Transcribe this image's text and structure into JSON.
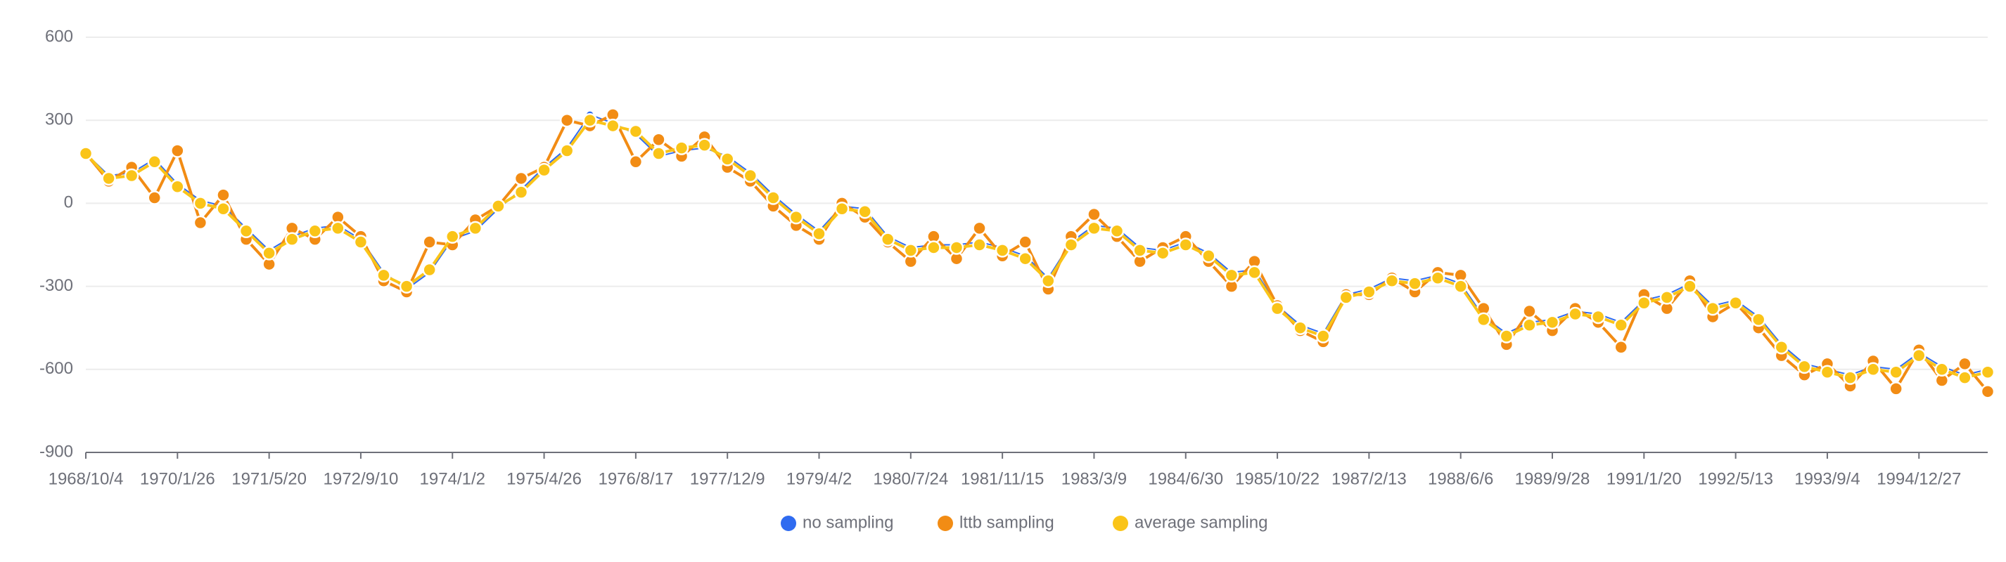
{
  "chart_data": {
    "type": "line",
    "categories": [
      "1968/10/4",
      null,
      null,
      null,
      "1970/1/26",
      null,
      null,
      null,
      "1971/5/20",
      null,
      null,
      null,
      "1972/9/10",
      null,
      null,
      null,
      "1974/1/2",
      null,
      null,
      null,
      "1975/4/26",
      null,
      null,
      null,
      "1976/8/17",
      null,
      null,
      null,
      "1977/12/9",
      null,
      null,
      null,
      "1979/4/2",
      null,
      null,
      null,
      "1980/7/24",
      null,
      null,
      null,
      "1981/11/15",
      null,
      null,
      null,
      "1983/3/9",
      null,
      null,
      null,
      "1984/6/30",
      null,
      null,
      null,
      "1985/10/22",
      null,
      null,
      null,
      "1987/2/13",
      null,
      null,
      null,
      "1988/6/6",
      null,
      null,
      null,
      "1989/9/28",
      null,
      null,
      null,
      "1991/1/20",
      null,
      null,
      null,
      "1992/5/13",
      null,
      null,
      null,
      "1993/9/4",
      null,
      null,
      null,
      "1994/12/27",
      null,
      null,
      null
    ],
    "series": [
      {
        "name": "no sampling",
        "color": "#2f6bf0",
        "values": [
          180,
          100,
          110,
          160,
          70,
          10,
          -10,
          -90,
          -170,
          -120,
          -90,
          -80,
          -130,
          -250,
          -310,
          -250,
          -130,
          -100,
          -20,
          50,
          130,
          200,
          320,
          290,
          250,
          170,
          190,
          200,
          170,
          110,
          30,
          -40,
          -100,
          -10,
          -20,
          -120,
          -160,
          -150,
          -150,
          -140,
          -160,
          -190,
          -270,
          -140,
          -80,
          -90,
          -160,
          -170,
          -140,
          -180,
          -250,
          -240,
          -370,
          -440,
          -470,
          -330,
          -310,
          -270,
          -280,
          -260,
          -290,
          -410,
          -470,
          -430,
          -420,
          -390,
          -400,
          -430,
          -350,
          -330,
          -290,
          -370,
          -350,
          -410,
          -510,
          -580,
          -600,
          -620,
          -590,
          -600,
          -540,
          -590,
          -620,
          -600
        ]
      },
      {
        "name": "lttb sampling",
        "color": "#f28c14",
        "values": [
          180,
          80,
          130,
          20,
          190,
          -70,
          30,
          -130,
          -220,
          -90,
          -130,
          -50,
          -120,
          -280,
          -320,
          -140,
          -150,
          -60,
          -10,
          90,
          130,
          300,
          280,
          320,
          150,
          230,
          170,
          240,
          130,
          80,
          -10,
          -80,
          -130,
          0,
          -50,
          -140,
          -210,
          -120,
          -200,
          -90,
          -190,
          -140,
          -310,
          -120,
          -40,
          -120,
          -210,
          -160,
          -120,
          -210,
          -300,
          -210,
          -370,
          -460,
          -500,
          -330,
          -330,
          -270,
          -320,
          -250,
          -260,
          -380,
          -510,
          -390,
          -460,
          -380,
          -430,
          -520,
          -330,
          -380,
          -280,
          -410,
          -360,
          -450,
          -550,
          -620,
          -580,
          -660,
          -570,
          -670,
          -530,
          -640,
          -580,
          -680
        ]
      },
      {
        "name": "average sampling",
        "color": "#fac418",
        "values": [
          180,
          90,
          100,
          150,
          60,
          0,
          -20,
          -100,
          -180,
          -130,
          -100,
          -90,
          -140,
          -260,
          -300,
          -240,
          -120,
          -90,
          -10,
          40,
          120,
          190,
          300,
          280,
          260,
          180,
          200,
          210,
          160,
          100,
          20,
          -50,
          -110,
          -20,
          -30,
          -130,
          -170,
          -160,
          -160,
          -150,
          -170,
          -200,
          -280,
          -150,
          -90,
          -100,
          -170,
          -180,
          -150,
          -190,
          -260,
          -250,
          -380,
          -450,
          -480,
          -340,
          -320,
          -280,
          -290,
          -270,
          -300,
          -420,
          -480,
          -440,
          -430,
          -400,
          -410,
          -440,
          -360,
          -340,
          -300,
          -380,
          -360,
          -420,
          -520,
          -590,
          -610,
          -630,
          -600,
          -610,
          -550,
          -600,
          -630,
          -610
        ]
      }
    ],
    "ylim": [
      -900,
      600
    ],
    "yticks": [
      -900,
      -600,
      -300,
      0,
      300,
      600
    ],
    "grid": true,
    "legend": "bottom"
  }
}
